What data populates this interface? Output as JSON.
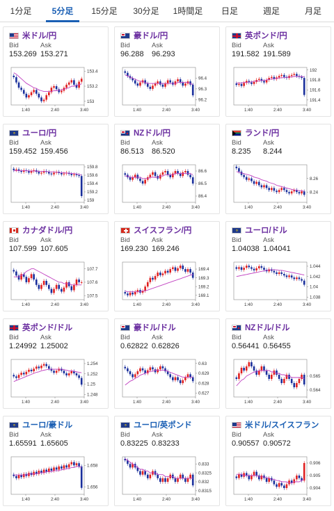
{
  "tabs": [
    {
      "label": "1分足",
      "active": false
    },
    {
      "label": "5分足",
      "active": true
    },
    {
      "label": "15分足",
      "active": false
    },
    {
      "label": "30分足",
      "active": false
    },
    {
      "label": "1時間足",
      "active": false
    },
    {
      "label": "日足",
      "active": false
    },
    {
      "label": "週足",
      "active": false
    },
    {
      "label": "月足",
      "active": false
    }
  ],
  "quote_labels": {
    "bid": "Bid",
    "ask": "Ask"
  },
  "colors": {
    "up": "#e02020",
    "down": "#1a2f9c",
    "ma": "#c040c0",
    "axis": "#888888",
    "tab_accent": "#1a5fb4",
    "pair": "#6b2fa0"
  },
  "chart_data": [
    {
      "type": "candlestick",
      "pair": "米ドル/円",
      "flag": "us",
      "bid": "153.269",
      "ask": "153.271",
      "x_ticks": [
        "1:40",
        "2:40",
        "3:40"
      ],
      "y_ticks": [
        "153.4",
        "153.2",
        "153"
      ],
      "ylim": [
        152.95,
        153.45
      ],
      "closes": [
        153.32,
        153.25,
        153.18,
        153.15,
        153.1,
        153.05,
        153.08,
        153.12,
        153.15,
        153.1,
        153.05,
        153.0,
        153.02,
        153.08,
        153.12,
        153.18,
        153.2,
        153.16,
        153.12,
        153.14,
        153.18,
        153.22,
        153.25,
        153.28,
        153.22,
        153.18,
        153.26,
        153.3
      ],
      "ma": [
        153.38,
        153.36,
        153.33,
        153.3,
        153.27,
        153.24,
        153.22,
        153.2,
        153.18,
        153.17,
        153.15,
        153.14,
        153.13,
        153.13,
        153.13,
        153.13,
        153.14,
        153.14,
        153.15,
        153.15,
        153.16,
        153.17,
        153.18,
        153.2,
        153.2,
        153.21,
        153.22,
        153.23
      ]
    },
    {
      "type": "candlestick",
      "pair": "豪ドル/円",
      "flag": "au",
      "bid": "96.288",
      "ask": "96.293",
      "x_ticks": [
        "1:40",
        "2:40",
        "3:40"
      ],
      "y_ticks": [
        "96.4",
        "96.3",
        "96.2"
      ],
      "ylim": [
        96.15,
        96.5
      ],
      "closes": [
        96.45,
        96.42,
        96.4,
        96.38,
        96.35,
        96.33,
        96.36,
        96.38,
        96.35,
        96.32,
        96.3,
        96.33,
        96.35,
        96.37,
        96.34,
        96.32,
        96.35,
        96.38,
        96.36,
        96.34,
        96.37,
        96.39,
        96.36,
        96.33,
        96.35,
        96.37,
        96.34,
        96.24
      ],
      "ma": [
        96.43,
        96.42,
        96.41,
        96.4,
        96.39,
        96.38,
        96.37,
        96.37,
        96.36,
        96.35,
        96.35,
        96.35,
        96.35,
        96.35,
        96.35,
        96.35,
        96.35,
        96.35,
        96.35,
        96.35,
        96.35,
        96.36,
        96.36,
        96.36,
        96.36,
        96.36,
        96.35,
        96.34
      ]
    },
    {
      "type": "candlestick",
      "pair": "英ポンド/円",
      "flag": "gb",
      "bid": "191.582",
      "ask": "191.589",
      "x_ticks": [
        "1:40",
        "2:40",
        "3:40"
      ],
      "y_ticks": [
        "192",
        "191.8",
        "191.6",
        "191.4"
      ],
      "ylim": [
        191.3,
        192.05
      ],
      "closes": [
        191.7,
        191.72,
        191.68,
        191.74,
        191.78,
        191.75,
        191.72,
        191.76,
        191.8,
        191.82,
        191.78,
        191.75,
        191.8,
        191.84,
        191.86,
        191.82,
        191.85,
        191.88,
        191.9,
        191.86,
        191.84,
        191.88,
        191.9,
        191.92,
        191.88,
        191.86,
        191.84,
        191.5
      ],
      "ma": [
        191.74,
        191.74,
        191.74,
        191.75,
        191.75,
        191.76,
        191.76,
        191.77,
        191.78,
        191.78,
        191.79,
        191.79,
        191.8,
        191.81,
        191.82,
        191.82,
        191.83,
        191.84,
        191.84,
        191.85,
        191.85,
        191.86,
        191.86,
        191.87,
        191.87,
        191.87,
        191.87,
        191.86
      ]
    },
    {
      "type": "candlestick",
      "pair": "ユーロ/円",
      "flag": "eu",
      "bid": "159.452",
      "ask": "159.456",
      "x_ticks": [
        "1:40",
        "2:40",
        "3:40"
      ],
      "y_ticks": [
        "159.8",
        "159.6",
        "159.4",
        "159.2",
        "159"
      ],
      "ylim": [
        158.95,
        159.85
      ],
      "closes": [
        159.72,
        159.74,
        159.7,
        159.68,
        159.72,
        159.7,
        159.66,
        159.7,
        159.72,
        159.68,
        159.64,
        159.66,
        159.7,
        159.68,
        159.64,
        159.62,
        159.66,
        159.68,
        159.65,
        159.62,
        159.64,
        159.66,
        159.63,
        159.6,
        159.62,
        159.6,
        159.58,
        159.1
      ],
      "ma": [
        159.71,
        159.71,
        159.71,
        159.71,
        159.71,
        159.71,
        159.7,
        159.7,
        159.7,
        159.7,
        159.69,
        159.69,
        159.69,
        159.69,
        159.68,
        159.68,
        159.68,
        159.67,
        159.67,
        159.66,
        159.66,
        159.65,
        159.65,
        159.64,
        159.64,
        159.63,
        159.62,
        159.6
      ]
    },
    {
      "type": "candlestick",
      "pair": "NZドル/円",
      "flag": "nz",
      "bid": "86.513",
      "ask": "86.520",
      "x_ticks": [
        "1:40",
        "2:40",
        "3:40"
      ],
      "y_ticks": [
        "86.6",
        "86.5",
        "86.4"
      ],
      "ylim": [
        86.35,
        86.65
      ],
      "closes": [
        86.57,
        86.55,
        86.53,
        86.55,
        86.57,
        86.54,
        86.52,
        86.5,
        86.53,
        86.55,
        86.57,
        86.59,
        86.56,
        86.54,
        86.57,
        86.59,
        86.6,
        86.57,
        86.55,
        86.58,
        86.6,
        86.58,
        86.56,
        86.59,
        86.6,
        86.57,
        86.55,
        86.5
      ],
      "ma": [
        86.56,
        86.56,
        86.55,
        86.55,
        86.55,
        86.55,
        86.55,
        86.54,
        86.54,
        86.54,
        86.55,
        86.55,
        86.55,
        86.55,
        86.56,
        86.56,
        86.57,
        86.57,
        86.57,
        86.57,
        86.58,
        86.58,
        86.58,
        86.58,
        86.58,
        86.58,
        86.58,
        86.57
      ]
    },
    {
      "type": "candlestick",
      "pair": "ランド/円",
      "flag": "za",
      "bid": "8.235",
      "ask": "8.244",
      "x_ticks": [
        "1:40",
        "2:40",
        "3:40"
      ],
      "y_ticks": [
        "8.26",
        "8.24"
      ],
      "ylim": [
        8.225,
        8.28
      ],
      "closes": [
        8.275,
        8.27,
        8.265,
        8.262,
        8.258,
        8.26,
        8.256,
        8.252,
        8.255,
        8.25,
        8.247,
        8.25,
        8.246,
        8.243,
        8.246,
        8.242,
        8.24,
        8.243,
        8.246,
        8.243,
        8.24,
        8.238,
        8.241,
        8.243,
        8.24,
        8.238,
        8.241,
        8.236
      ],
      "ma": [
        8.27,
        8.269,
        8.268,
        8.267,
        8.266,
        8.265,
        8.264,
        8.262,
        8.261,
        8.26,
        8.258,
        8.257,
        8.256,
        8.254,
        8.253,
        8.252,
        8.25,
        8.249,
        8.248,
        8.247,
        8.246,
        8.245,
        8.244,
        8.243,
        8.243,
        8.242,
        8.242,
        8.241
      ]
    },
    {
      "type": "candlestick",
      "pair": "カナダドル/円",
      "flag": "ca",
      "bid": "107.599",
      "ask": "107.605",
      "x_ticks": [
        "1:40",
        "2:40",
        "3:40"
      ],
      "y_ticks": [
        "107.7",
        "107.6",
        "107.5"
      ],
      "ylim": [
        107.47,
        107.75
      ],
      "closes": [
        107.68,
        107.65,
        107.62,
        107.66,
        107.64,
        107.6,
        107.63,
        107.66,
        107.62,
        107.58,
        107.55,
        107.58,
        107.61,
        107.58,
        107.55,
        107.52,
        107.55,
        107.58,
        107.55,
        107.53,
        107.56,
        107.6,
        107.57,
        107.54,
        107.58,
        107.62,
        107.6,
        107.6
      ],
      "ma": [
        107.64,
        107.64,
        107.64,
        107.65,
        107.66,
        107.68,
        107.69,
        107.7,
        107.7,
        107.69,
        107.68,
        107.67,
        107.66,
        107.65,
        107.64,
        107.63,
        107.62,
        107.61,
        107.6,
        107.6,
        107.59,
        107.59,
        107.59,
        107.58,
        107.58,
        107.58,
        107.58,
        107.58
      ]
    },
    {
      "type": "candlestick",
      "pair": "スイスフラン/円",
      "flag": "ch",
      "bid": "169.230",
      "ask": "169.246",
      "x_ticks": [
        "1:40",
        "2:40",
        "3:40"
      ],
      "y_ticks": [
        "169.4",
        "169.3",
        "169.2",
        "169.1"
      ],
      "ylim": [
        169.05,
        169.48
      ],
      "closes": [
        169.12,
        169.1,
        169.13,
        169.11,
        169.14,
        169.16,
        169.13,
        169.15,
        169.2,
        169.25,
        169.3,
        169.28,
        169.32,
        169.36,
        169.33,
        169.35,
        169.38,
        169.36,
        169.4,
        169.42,
        169.38,
        169.41,
        169.44,
        169.4,
        169.37,
        169.4,
        169.36,
        169.3
      ],
      "ma": [
        169.15,
        169.14,
        169.14,
        169.14,
        169.14,
        169.14,
        169.14,
        169.15,
        169.15,
        169.16,
        169.17,
        169.18,
        169.19,
        169.2,
        169.21,
        169.22,
        169.23,
        169.24,
        169.25,
        169.26,
        169.27,
        169.28,
        169.29,
        169.3,
        169.31,
        169.32,
        169.33,
        169.34
      ]
    },
    {
      "type": "candlestick",
      "pair": "ユーロ/ドル",
      "flag": "eu",
      "bid": "1.04038",
      "ask": "1.04041",
      "x_ticks": [
        "1:40",
        "2:40",
        "3:40"
      ],
      "y_ticks": [
        "1.044",
        "1.042",
        "1.04",
        "1.038"
      ],
      "ylim": [
        1.0375,
        1.0448
      ],
      "closes": [
        1.0435,
        1.0438,
        1.0433,
        1.0437,
        1.0441,
        1.0438,
        1.0435,
        1.0432,
        1.0436,
        1.044,
        1.0437,
        1.0433,
        1.043,
        1.0434,
        1.0431,
        1.0428,
        1.0425,
        1.0428,
        1.0425,
        1.0422,
        1.0419,
        1.0422,
        1.0418,
        1.0415,
        1.0418,
        1.0415,
        1.0412,
        1.0404
      ],
      "ma": [
        1.042,
        1.0421,
        1.0422,
        1.0423,
        1.0424,
        1.0425,
        1.0426,
        1.0427,
        1.0428,
        1.0429,
        1.043,
        1.0431,
        1.0432,
        1.0433,
        1.0433,
        1.0433,
        1.0433,
        1.0432,
        1.0432,
        1.0431,
        1.043,
        1.0429,
        1.0428,
        1.0427,
        1.0426,
        1.0425,
        1.0424,
        1.0423
      ]
    },
    {
      "type": "candlestick",
      "pair": "英ポンド/ドル",
      "flag": "gb",
      "bid": "1.24992",
      "ask": "1.25002",
      "x_ticks": [
        "1:40",
        "2:40",
        "3:40"
      ],
      "y_ticks": [
        "1.254",
        "1.252",
        "1.25",
        "1.248"
      ],
      "ylim": [
        1.2475,
        1.2548
      ],
      "closes": [
        1.2515,
        1.2512,
        1.2518,
        1.2522,
        1.2519,
        1.2524,
        1.2528,
        1.2525,
        1.253,
        1.2534,
        1.2531,
        1.2536,
        1.2539,
        1.2535,
        1.253,
        1.2526,
        1.2522,
        1.2526,
        1.253,
        1.2526,
        1.2521,
        1.2517,
        1.2521,
        1.2525,
        1.2521,
        1.2517,
        1.2512,
        1.2499
      ],
      "ma": [
        1.2505,
        1.2507,
        1.2509,
        1.2511,
        1.2513,
        1.2515,
        1.2517,
        1.2519,
        1.2521,
        1.2523,
        1.2524,
        1.2526,
        1.2527,
        1.2528,
        1.2529,
        1.2529,
        1.2529,
        1.2529,
        1.2529,
        1.2529,
        1.2528,
        1.2527,
        1.2526,
        1.2526,
        1.2525,
        1.2524,
        1.2523,
        1.2522
      ]
    },
    {
      "type": "candlestick",
      "pair": "豪ドル/ドル",
      "flag": "au",
      "bid": "0.62822",
      "ask": "0.62826",
      "x_ticks": [
        "1:40",
        "2:40",
        "3:40"
      ],
      "y_ticks": [
        "0.63",
        "0.629",
        "0.628",
        "0.627"
      ],
      "ylim": [
        0.6266,
        0.6304
      ],
      "closes": [
        0.6295,
        0.6292,
        0.6289,
        0.6286,
        0.6289,
        0.6292,
        0.6295,
        0.6293,
        0.629,
        0.6293,
        0.6296,
        0.6294,
        0.6291,
        0.6294,
        0.6297,
        0.6295,
        0.6292,
        0.6289,
        0.6286,
        0.6283,
        0.6286,
        0.6283,
        0.628,
        0.6283,
        0.6286,
        0.6289,
        0.6286,
        0.6282
      ],
      "ma": [
        0.6278,
        0.628,
        0.6282,
        0.6283,
        0.6285,
        0.6286,
        0.6288,
        0.6289,
        0.629,
        0.6291,
        0.6292,
        0.6292,
        0.6293,
        0.6293,
        0.6293,
        0.6293,
        0.6293,
        0.6292,
        0.6291,
        0.629,
        0.6289,
        0.6288,
        0.6287,
        0.6286,
        0.6286,
        0.6286,
        0.6286,
        0.6286
      ]
    },
    {
      "type": "candlestick",
      "pair": "NZドル/ドル",
      "flag": "nz",
      "bid": "0.56441",
      "ask": "0.56455",
      "x_ticks": [
        "1:40",
        "2:40",
        "3:40"
      ],
      "y_ticks": [
        "0.565",
        "0.564"
      ],
      "ylim": [
        0.5635,
        0.5662
      ],
      "closes": [
        0.5648,
        0.5652,
        0.5656,
        0.5654,
        0.5657,
        0.566,
        0.5657,
        0.5654,
        0.5651,
        0.5654,
        0.5657,
        0.5654,
        0.5651,
        0.5648,
        0.5651,
        0.5654,
        0.5651,
        0.5648,
        0.5645,
        0.5648,
        0.5651,
        0.5648,
        0.5645,
        0.5642,
        0.5645,
        0.5648,
        0.5651,
        0.5644
      ],
      "ma": [
        0.5643,
        0.5645,
        0.5647,
        0.5648,
        0.565,
        0.5651,
        0.5652,
        0.5653,
        0.5653,
        0.5654,
        0.5654,
        0.5654,
        0.5654,
        0.5654,
        0.5653,
        0.5653,
        0.5652,
        0.5652,
        0.5651,
        0.5651,
        0.565,
        0.565,
        0.5649,
        0.5649,
        0.5649,
        0.5649,
        0.5649,
        0.5648
      ]
    },
    {
      "type": "candlestick",
      "pair": "ユーロ/豪ドル",
      "flag": "eu",
      "bid": "1.65591",
      "ask": "1.65605",
      "x_ticks": [
        "1:40",
        "2:40",
        "3:40"
      ],
      "y_ticks": [
        "1.658",
        "1.656"
      ],
      "ylim": [
        1.6553,
        1.6588
      ],
      "closes": [
        1.657,
        1.6568,
        1.6571,
        1.6569,
        1.6572,
        1.657,
        1.6573,
        1.6571,
        1.6574,
        1.6572,
        1.6575,
        1.6573,
        1.6576,
        1.6574,
        1.6577,
        1.6575,
        1.6578,
        1.6576,
        1.6579,
        1.6577,
        1.658,
        1.6578,
        1.6581,
        1.6583,
        1.658,
        1.6582,
        1.6579,
        1.6559
      ],
      "ma": [
        1.6571,
        1.6571,
        1.6571,
        1.6571,
        1.6571,
        1.6571,
        1.6572,
        1.6572,
        1.6572,
        1.6572,
        1.6573,
        1.6573,
        1.6573,
        1.6574,
        1.6574,
        1.6574,
        1.6575,
        1.6575,
        1.6575,
        1.6576,
        1.6576,
        1.6577,
        1.6577,
        1.6578,
        1.6578,
        1.6579,
        1.6579,
        1.6578
      ]
    },
    {
      "type": "candlestick",
      "pair": "ユーロ/英ポンド",
      "flag": "eu",
      "bid": "0.83225",
      "ask": "0.83233",
      "x_ticks": [
        "1:40",
        "2:40",
        "3:40"
      ],
      "y_ticks": [
        "0.833",
        "0.8325",
        "0.832",
        "0.8315"
      ],
      "ylim": [
        0.8313,
        0.8334
      ],
      "closes": [
        0.8332,
        0.833,
        0.8328,
        0.833,
        0.8328,
        0.8326,
        0.8324,
        0.8326,
        0.8324,
        0.8322,
        0.8324,
        0.8326,
        0.8324,
        0.8322,
        0.832,
        0.8322,
        0.832,
        0.8322,
        0.8324,
        0.8322,
        0.832,
        0.8322,
        0.8324,
        0.8322,
        0.832,
        0.8322,
        0.8324,
        0.8318
      ],
      "ma": [
        0.8333,
        0.8332,
        0.8331,
        0.833,
        0.8329,
        0.8328,
        0.8327,
        0.8327,
        0.8326,
        0.8326,
        0.8325,
        0.8325,
        0.8325,
        0.8324,
        0.8324,
        0.8324,
        0.8323,
        0.8323,
        0.8323,
        0.8323,
        0.8322,
        0.8322,
        0.8322,
        0.8322,
        0.8322,
        0.8322,
        0.8322,
        0.8322
      ]
    },
    {
      "type": "candlestick",
      "pair": "米ドル/スイスフラン",
      "flag": "us",
      "bid": "0.90557",
      "ask": "0.90572",
      "x_ticks": [
        "1:40",
        "2:40",
        "3:40"
      ],
      "y_ticks": [
        "0.906",
        "0.905",
        "0.904"
      ],
      "ylim": [
        0.9035,
        0.9065
      ],
      "closes": [
        0.9048,
        0.9051,
        0.9049,
        0.9052,
        0.905,
        0.9047,
        0.905,
        0.9053,
        0.905,
        0.9047,
        0.905,
        0.9048,
        0.9045,
        0.9048,
        0.9046,
        0.9043,
        0.9041,
        0.9044,
        0.9042,
        0.904,
        0.9043,
        0.9046,
        0.9044,
        0.9047,
        0.905,
        0.9048,
        0.9046,
        0.906
      ],
      "ma": [
        0.9051,
        0.9051,
        0.9051,
        0.905,
        0.905,
        0.905,
        0.905,
        0.905,
        0.905,
        0.9049,
        0.9049,
        0.9049,
        0.9048,
        0.9048,
        0.9047,
        0.9047,
        0.9046,
        0.9046,
        0.9045,
        0.9045,
        0.9045,
        0.9044,
        0.9044,
        0.9045,
        0.9045,
        0.9045,
        0.9046,
        0.9047
      ]
    }
  ]
}
